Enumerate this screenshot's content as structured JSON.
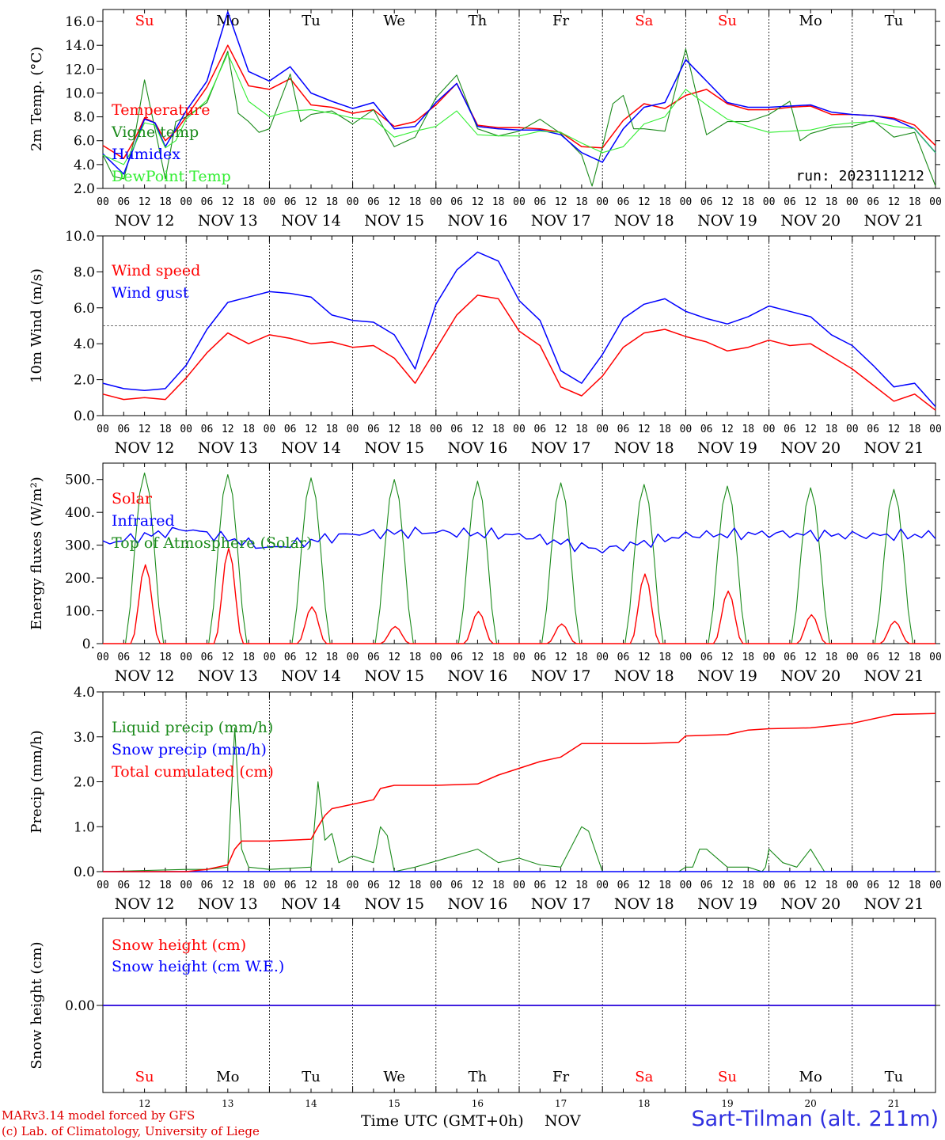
{
  "colors": {
    "red": "#ff0000",
    "darkgreen": "#1a8a1a",
    "blue": "#0000ff",
    "lightgreen": "#33ee33",
    "purple": "#7030a0",
    "weekend": "#ff0000",
    "weekday": "#000000"
  },
  "days": [
    {
      "dow": "Su",
      "date": "NOV 12",
      "num": "12",
      "weekend": true
    },
    {
      "dow": "Mo",
      "date": "NOV 13",
      "num": "13",
      "weekend": false
    },
    {
      "dow": "Tu",
      "date": "NOV 14",
      "num": "14",
      "weekend": false
    },
    {
      "dow": "We",
      "date": "NOV 15",
      "num": "15",
      "weekend": false
    },
    {
      "dow": "Th",
      "date": "NOV 16",
      "num": "16",
      "weekend": false
    },
    {
      "dow": "Fr",
      "date": "NOV 17",
      "num": "17",
      "weekend": false
    },
    {
      "dow": "Sa",
      "date": "NOV 18",
      "num": "18",
      "weekend": true
    },
    {
      "dow": "Su",
      "date": "NOV 19",
      "num": "19",
      "weekend": true
    },
    {
      "dow": "Mo",
      "date": "NOV 20",
      "num": "20",
      "weekend": false
    },
    {
      "dow": "Tu",
      "date": "NOV 21",
      "num": "21",
      "weekend": false
    }
  ],
  "hour_ticks": [
    "00",
    "06",
    "12",
    "18"
  ],
  "run_label": "run: 2023111212",
  "footer": {
    "credit_line1": "MARv3.14 model forced by GFS",
    "credit_line2": "(c) Lab. of Climatology, University of Liege",
    "x_title": "Time UTC (GMT+0h)",
    "x_unit": "NOV",
    "station": "Sart-Tilman (alt. 211m)"
  },
  "chart_data": [
    {
      "type": "line",
      "ylabel": "2m Temp. (°C)",
      "ylim": [
        2,
        17
      ],
      "yticks": [
        2,
        4,
        6,
        8,
        10,
        12,
        14,
        16
      ],
      "ytick_labels": [
        "2.0",
        "4.0",
        "6.0",
        "8.0",
        "10.0",
        "12.0",
        "14.0",
        "16.0"
      ],
      "x_hours_range": [
        0,
        240
      ],
      "show_day_names": true,
      "series": [
        {
          "name": "Temperature",
          "color": "red",
          "x": [
            0,
            6,
            9,
            12,
            15,
            18,
            21,
            24,
            30,
            36,
            42,
            48,
            54,
            60,
            66,
            72,
            78,
            84,
            90,
            96,
            102,
            108,
            114,
            120,
            126,
            132,
            138,
            144,
            150,
            156,
            162,
            168,
            174,
            180,
            186,
            192,
            198,
            204,
            210,
            216,
            222,
            228,
            234,
            240
          ],
          "y": [
            5.6,
            4.5,
            6.0,
            7.9,
            7.5,
            6.0,
            6.8,
            8.0,
            10.5,
            14.0,
            10.6,
            10.3,
            11.2,
            9.0,
            8.8,
            8.3,
            8.6,
            7.2,
            7.6,
            9.0,
            10.8,
            7.3,
            7.1,
            7.1,
            7.0,
            6.7,
            5.5,
            5.4,
            7.7,
            9.1,
            8.7,
            9.8,
            10.3,
            9.1,
            8.6,
            8.6,
            8.8,
            8.9,
            8.2,
            8.2,
            8.1,
            7.9,
            7.3,
            5.6
          ]
        },
        {
          "name": "Vigne temp",
          "color": "darkgreen",
          "x": [
            0,
            3,
            6,
            9,
            12,
            15,
            18,
            21,
            24,
            30,
            36,
            39,
            42,
            45,
            48,
            54,
            57,
            60,
            66,
            72,
            78,
            84,
            90,
            96,
            102,
            108,
            114,
            120,
            126,
            132,
            138,
            141,
            144,
            147,
            150,
            153,
            156,
            162,
            168,
            171,
            174,
            180,
            186,
            192,
            198,
            201,
            204,
            210,
            216,
            222,
            228,
            234,
            240
          ],
          "y": [
            4.8,
            3.0,
            2.8,
            6.0,
            11.1,
            7.0,
            2.8,
            7.6,
            8.0,
            9.2,
            13.5,
            8.3,
            7.6,
            6.7,
            7.0,
            11.6,
            7.6,
            8.2,
            8.5,
            7.4,
            8.6,
            5.5,
            6.3,
            9.6,
            11.5,
            7.0,
            6.4,
            6.8,
            7.8,
            6.6,
            4.8,
            2.2,
            5.5,
            9.1,
            9.8,
            7.0,
            7.0,
            6.8,
            13.7,
            10.0,
            6.5,
            7.6,
            7.6,
            8.2,
            9.3,
            6.0,
            6.6,
            7.1,
            7.2,
            7.7,
            6.3,
            6.7,
            2.2
          ]
        },
        {
          "name": "Humidex",
          "color": "blue",
          "x": [
            0,
            6,
            9,
            12,
            15,
            18,
            21,
            24,
            30,
            36,
            42,
            48,
            54,
            60,
            66,
            72,
            78,
            84,
            90,
            96,
            102,
            108,
            114,
            120,
            126,
            132,
            138,
            144,
            150,
            156,
            162,
            168,
            174,
            180,
            186,
            192,
            198,
            204,
            210,
            216,
            222,
            228,
            234,
            240
          ],
          "y": [
            4.9,
            3.2,
            5.5,
            7.8,
            7.5,
            5.5,
            7.0,
            8.5,
            11.0,
            16.8,
            11.8,
            11.0,
            12.2,
            10.0,
            9.3,
            8.7,
            9.2,
            7.0,
            7.2,
            9.2,
            10.8,
            7.2,
            7.0,
            6.9,
            6.9,
            6.5,
            5.0,
            4.2,
            7.0,
            8.8,
            9.2,
            12.8,
            11.0,
            9.2,
            8.8,
            8.8,
            8.9,
            9.0,
            8.4,
            8.2,
            8.1,
            7.8,
            7.0,
            5.0
          ]
        },
        {
          "name": "DewPoint Temp",
          "color": "lightgreen",
          "x": [
            0,
            6,
            9,
            12,
            15,
            18,
            21,
            24,
            30,
            36,
            42,
            48,
            54,
            60,
            66,
            72,
            78,
            84,
            90,
            96,
            102,
            108,
            114,
            120,
            126,
            132,
            138,
            144,
            150,
            156,
            162,
            168,
            174,
            180,
            186,
            192,
            198,
            204,
            210,
            216,
            222,
            228,
            234,
            240
          ],
          "y": [
            4.8,
            4.0,
            5.5,
            7.5,
            7.3,
            5.4,
            6.0,
            7.8,
            9.4,
            13.3,
            9.3,
            8.0,
            8.5,
            8.6,
            8.3,
            7.9,
            7.8,
            6.3,
            6.8,
            7.2,
            8.5,
            6.5,
            6.4,
            6.4,
            6.8,
            6.7,
            5.8,
            5.0,
            5.5,
            7.4,
            8.0,
            10.3,
            9.0,
            7.8,
            7.2,
            6.7,
            6.8,
            6.9,
            7.3,
            7.5,
            7.6,
            7.2,
            7.0,
            5.0
          ]
        }
      ]
    },
    {
      "type": "line",
      "ylabel": "10m Wind (m/s)",
      "ylim": [
        0,
        10
      ],
      "yticks": [
        0,
        2,
        4,
        6,
        8,
        10
      ],
      "ytick_labels": [
        "0.0",
        "2.0",
        "4.0",
        "6.0",
        "8.0",
        "10.0"
      ],
      "reference_line": 5.0,
      "x_hours_range": [
        0,
        240
      ],
      "show_day_names": false,
      "series": [
        {
          "name": "Wind speed",
          "color": "red",
          "x": [
            0,
            6,
            12,
            18,
            24,
            30,
            36,
            42,
            48,
            54,
            60,
            66,
            72,
            78,
            84,
            90,
            96,
            102,
            108,
            114,
            120,
            126,
            132,
            138,
            144,
            150,
            156,
            162,
            168,
            174,
            180,
            186,
            192,
            198,
            204,
            210,
            216,
            222,
            228,
            234,
            240
          ],
          "y": [
            1.2,
            0.9,
            1.0,
            0.9,
            2.1,
            3.5,
            4.6,
            4.0,
            4.5,
            4.3,
            4.0,
            4.1,
            3.8,
            3.9,
            3.2,
            1.8,
            3.7,
            5.6,
            6.7,
            6.5,
            4.7,
            3.9,
            1.6,
            1.1,
            2.2,
            3.8,
            4.6,
            4.8,
            4.4,
            4.1,
            3.6,
            3.8,
            4.2,
            3.9,
            4.0,
            3.3,
            2.6,
            1.7,
            0.8,
            1.2,
            0.3
          ]
        },
        {
          "name": "Wind gust",
          "color": "blue",
          "x": [
            0,
            6,
            12,
            18,
            24,
            30,
            36,
            42,
            48,
            54,
            60,
            66,
            72,
            78,
            84,
            90,
            96,
            102,
            108,
            114,
            120,
            126,
            132,
            138,
            144,
            150,
            156,
            162,
            168,
            174,
            180,
            186,
            192,
            198,
            204,
            210,
            216,
            222,
            228,
            234,
            240
          ],
          "y": [
            1.8,
            1.5,
            1.4,
            1.5,
            2.8,
            4.8,
            6.3,
            6.6,
            6.9,
            6.8,
            6.6,
            5.6,
            5.3,
            5.2,
            4.5,
            2.6,
            6.2,
            8.1,
            9.1,
            8.6,
            6.4,
            5.3,
            2.5,
            1.8,
            3.4,
            5.4,
            6.2,
            6.5,
            5.8,
            5.4,
            5.1,
            5.5,
            6.1,
            5.8,
            5.5,
            4.5,
            3.9,
            2.8,
            1.6,
            1.8,
            0.5
          ]
        }
      ]
    },
    {
      "type": "line",
      "ylabel": "Energy fluxes (W/m²)",
      "ylim": [
        0,
        550
      ],
      "yticks": [
        0,
        100,
        200,
        300,
        400,
        500
      ],
      "ytick_labels": [
        "0.",
        "100.",
        "200.",
        "300.",
        "400.",
        "500."
      ],
      "x_hours_range": [
        0,
        240
      ],
      "show_day_names": false,
      "diurnal": true,
      "series": [
        {
          "name": "Solar",
          "color": "red",
          "daily_peak": [
            240,
            290,
            112,
            52,
            98,
            60,
            212,
            160,
            88,
            68
          ]
        },
        {
          "name": "Infrared",
          "color": "blue",
          "daily_level": [
            305,
            350,
            290,
            335,
            340,
            330,
            285,
            330,
            335,
            330
          ]
        },
        {
          "name": "Top of Atmosphere (Solar)",
          "color": "darkgreen",
          "daily_peak": [
            520,
            515,
            505,
            500,
            495,
            490,
            485,
            480,
            475,
            470
          ]
        }
      ]
    },
    {
      "type": "line",
      "ylabel": "Precip (mm/h)",
      "ylim": [
        0,
        4
      ],
      "yticks": [
        0,
        1,
        2,
        3,
        4
      ],
      "ytick_labels": [
        "0.0",
        "1.0",
        "2.0",
        "3.0",
        "4.0"
      ],
      "x_hours_range": [
        0,
        240
      ],
      "show_day_names": false,
      "series": [
        {
          "name": "Liquid precip (mm/h)",
          "color": "darkgreen",
          "x": [
            0,
            24,
            30,
            36,
            38,
            40,
            42,
            48,
            60,
            62,
            64,
            66,
            68,
            72,
            78,
            80,
            82,
            84,
            90,
            108,
            114,
            120,
            126,
            132,
            138,
            140,
            144,
            166,
            168,
            170,
            172,
            174,
            180,
            186,
            190,
            191,
            192,
            196,
            200,
            202,
            204,
            208,
            210,
            216
          ],
          "y": [
            0,
            0.05,
            0.05,
            0.1,
            3.2,
            0.5,
            0.1,
            0.05,
            0.1,
            2.0,
            0.7,
            0.85,
            0.2,
            0.35,
            0.2,
            1.0,
            0.8,
            0.0,
            0.1,
            0.5,
            0.2,
            0.3,
            0.15,
            0.1,
            1.0,
            0.9,
            0.0,
            0.0,
            0.1,
            0.1,
            0.5,
            0.5,
            0.1,
            0.1,
            0.0,
            0.1,
            0.5,
            0.2,
            0.1,
            0.3,
            0.5,
            0.0,
            0.0,
            0.0
          ]
        },
        {
          "name": "Snow precip (mm/h)",
          "color": "blue",
          "x": [
            0,
            240
          ],
          "y": [
            0,
            0
          ]
        },
        {
          "name": "Total cumulated (cm)",
          "color": "red",
          "x": [
            0,
            24,
            30,
            36,
            38,
            40,
            48,
            60,
            62,
            64,
            66,
            72,
            78,
            80,
            84,
            96,
            108,
            114,
            120,
            126,
            132,
            138,
            144,
            156,
            166,
            168,
            180,
            186,
            192,
            204,
            210,
            216,
            228,
            240
          ],
          "y": [
            0,
            0,
            0.05,
            0.15,
            0.5,
            0.68,
            0.68,
            0.72,
            1.0,
            1.25,
            1.4,
            1.5,
            1.6,
            1.85,
            1.92,
            1.92,
            1.95,
            2.15,
            2.3,
            2.45,
            2.55,
            2.85,
            2.85,
            2.85,
            2.88,
            3.02,
            3.05,
            3.15,
            3.18,
            3.2,
            3.25,
            3.3,
            3.5,
            3.52
          ]
        }
      ]
    },
    {
      "type": "line",
      "ylabel": "Snow height (cm)",
      "ylim": [
        -1,
        1
      ],
      "yticks": [
        0
      ],
      "ytick_labels": [
        "0.00"
      ],
      "x_hours_range": [
        0,
        240
      ],
      "show_day_names": true,
      "day_names_bottom": true,
      "series": [
        {
          "name": "Snow height (cm)",
          "color": "red",
          "x": [
            0,
            240
          ],
          "y": [
            0,
            0
          ]
        },
        {
          "name": "Snow height (cm W.E.)",
          "color": "blue",
          "x": [
            0,
            240
          ],
          "y": [
            0,
            0
          ]
        }
      ]
    }
  ]
}
